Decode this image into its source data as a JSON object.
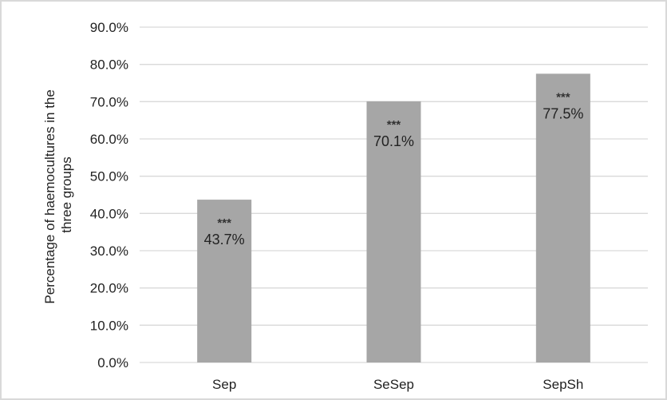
{
  "chart_data": {
    "type": "bar",
    "categories": [
      "Sep",
      "SeSep",
      "SepSh"
    ],
    "values": [
      43.7,
      70.1,
      77.5
    ],
    "data_labels": [
      "43.7%",
      "70.1%",
      "77.5%"
    ],
    "significance_labels": [
      "***",
      "***",
      "***"
    ],
    "title": "",
    "xlabel": "",
    "ylabel_lines": [
      "Percentage of haemocultures in the",
      "three groups"
    ],
    "ylim": [
      0,
      90
    ],
    "yticks": [
      "0.0%",
      "10.0%",
      "20.0%",
      "30.0%",
      "40.0%",
      "50.0%",
      "60.0%",
      "70.0%",
      "80.0%",
      "90.0%"
    ],
    "grid": true,
    "legend": "none",
    "colors": {
      "bar": "#a6a6a6",
      "grid": "#d9d9d9",
      "border": "#d9d9d9"
    }
  }
}
